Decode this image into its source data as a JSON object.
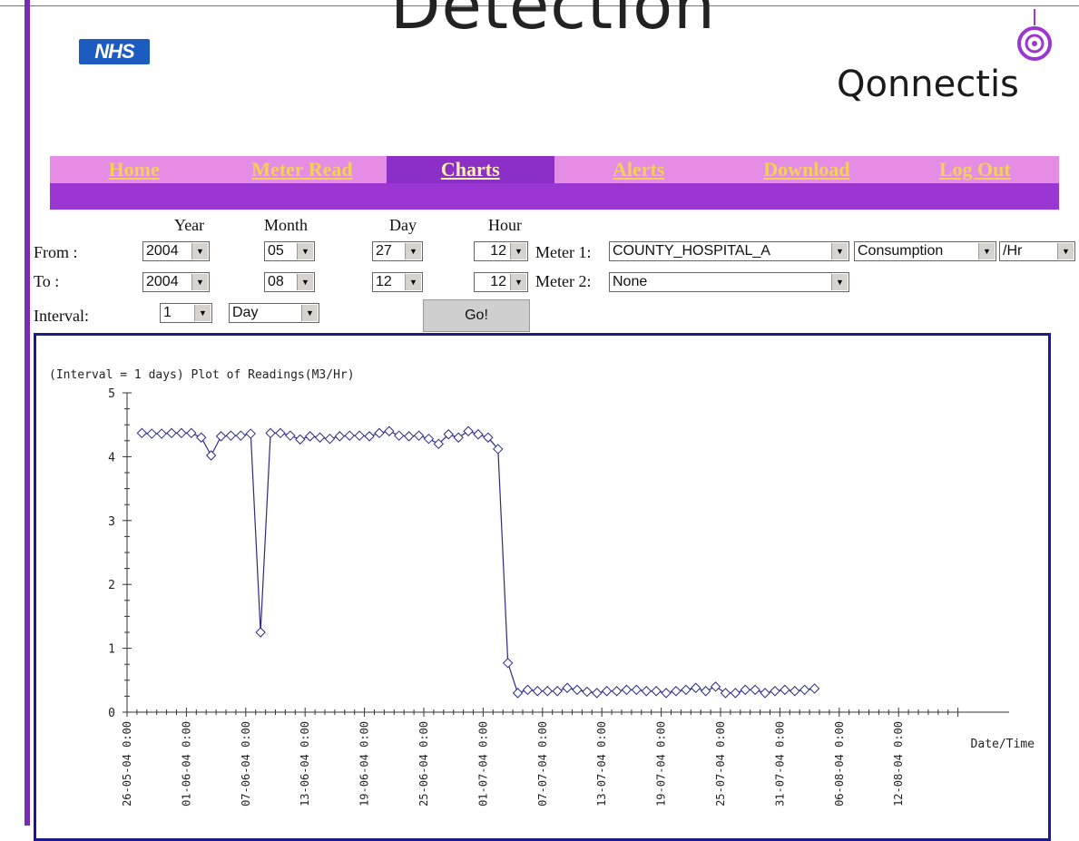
{
  "banner": {
    "text": "Detection"
  },
  "logos": {
    "nhs": "NHS",
    "qonnectis": "Qonnectis"
  },
  "nav": {
    "items": [
      {
        "label": "Home",
        "active": false
      },
      {
        "label": "Meter Read",
        "active": false
      },
      {
        "label": "Charts",
        "active": true
      },
      {
        "label": "Alerts",
        "active": false
      },
      {
        "label": "Download",
        "active": false
      },
      {
        "label": "Log Out",
        "active": false
      }
    ]
  },
  "form": {
    "headers": {
      "year": "Year",
      "month": "Month",
      "day": "Day",
      "hour": "Hour"
    },
    "from_label": "From :",
    "to_label": "To :",
    "interval_label": "Interval:",
    "from": {
      "year": "2004",
      "month": "05",
      "day": "27",
      "hour": "12"
    },
    "to": {
      "year": "2004",
      "month": "08",
      "day": "12",
      "hour": "12"
    },
    "interval": {
      "value": "1",
      "unit": "Day"
    },
    "meter1_label": "Meter 1:",
    "meter1_value": "COUNTY_HOSPITAL_A",
    "measure_value": "Consumption",
    "rate_value": "/Hr",
    "meter2_label": "Meter 2:",
    "meter2_value": "None",
    "go_label": "Go!"
  },
  "chart_data": {
    "type": "line",
    "title": "(Interval = 1 days) Plot of Readings(M3/Hr)",
    "xlabel": "Date/Time",
    "ylabel": "",
    "ylim": [
      0,
      5
    ],
    "yticks": [
      "0",
      "1",
      "2",
      "3",
      "4",
      "5"
    ],
    "xtick_labels": [
      "26-05-04 0:00",
      "01-06-04 0:00",
      "07-06-04 0:00",
      "13-06-04 0:00",
      "19-06-04 0:00",
      "25-06-04 0:00",
      "01-07-04 0:00",
      "07-07-04 0:00",
      "13-07-04 0:00",
      "19-07-04 0:00",
      "25-07-04 0:00",
      "31-07-04 0:00",
      "06-08-04 0:00",
      "12-08-04 0:00"
    ],
    "x_start": "27-05-04 12:00",
    "x_step_days": 1,
    "series": [
      {
        "values": [
          4.37,
          4.36,
          4.36,
          4.37,
          4.37,
          4.37,
          4.3,
          4.02,
          4.32,
          4.33,
          4.33,
          4.36,
          1.25,
          4.37,
          4.37,
          4.33,
          4.27,
          4.32,
          4.3,
          4.28,
          4.32,
          4.33,
          4.33,
          4.32,
          4.37,
          4.4,
          4.33,
          4.32,
          4.33,
          4.28,
          4.2,
          4.35,
          4.3,
          4.4,
          4.35,
          4.3,
          4.12,
          0.77,
          0.3,
          0.35,
          0.33,
          0.33,
          0.33,
          0.38,
          0.35,
          0.32,
          0.3,
          0.33,
          0.33,
          0.35,
          0.35,
          0.33,
          0.33,
          0.3,
          0.33,
          0.35,
          0.38,
          0.33,
          0.4,
          0.3,
          0.3,
          0.35,
          0.35,
          0.3,
          0.33,
          0.35,
          0.33,
          0.35,
          0.37
        ]
      }
    ],
    "grid": false,
    "line_color": "#2a2a8a"
  }
}
